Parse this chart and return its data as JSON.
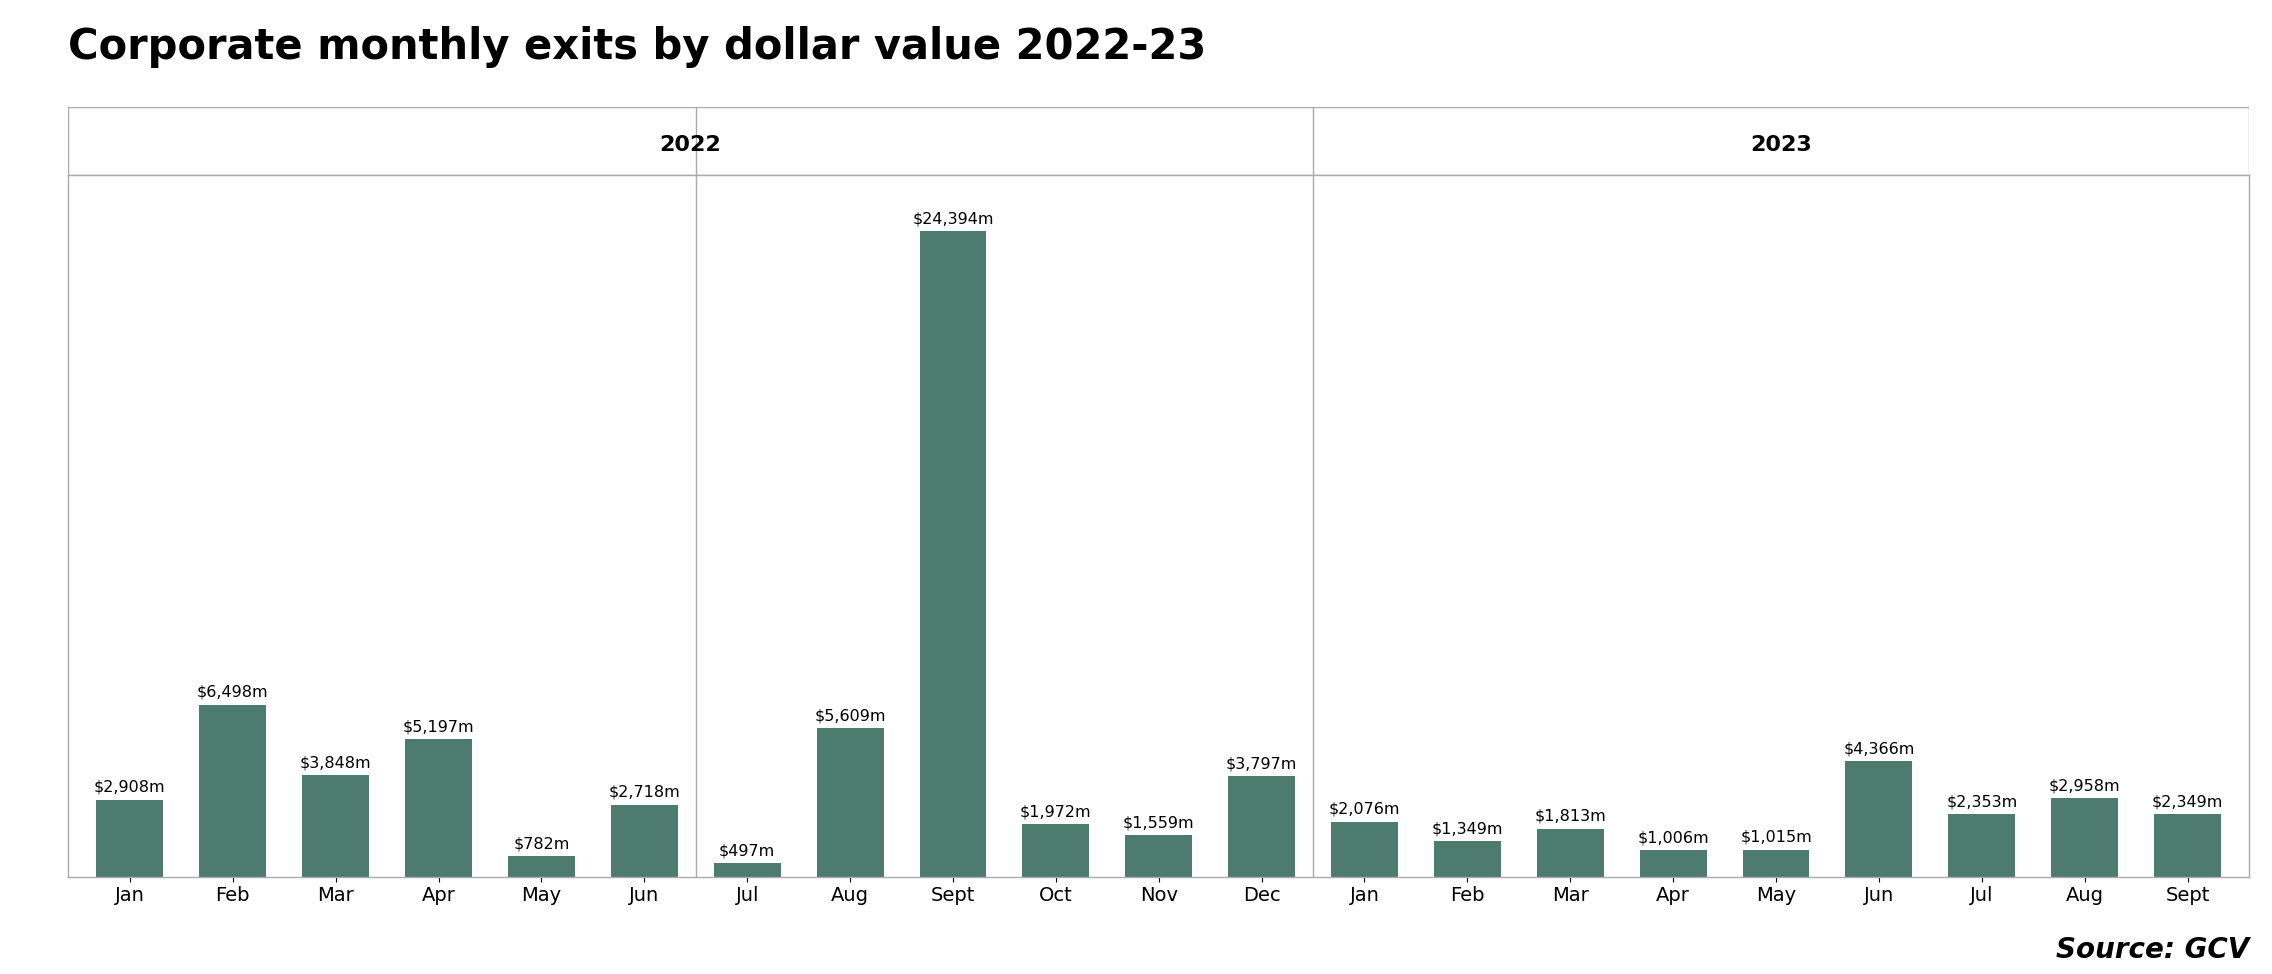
{
  "title": "Corporate monthly exits by dollar value 2022-23",
  "title_fontsize": 30,
  "bar_color": "#4d7c6f",
  "background_color": "#ffffff",
  "categories": [
    "Jan",
    "Feb",
    "Mar",
    "Apr",
    "May",
    "Jun",
    "Jul",
    "Aug",
    "Sept",
    "Oct",
    "Nov",
    "Dec",
    "Jan",
    "Feb",
    "Mar",
    "Apr",
    "May",
    "Jun",
    "Jul",
    "Aug",
    "Sept"
  ],
  "values": [
    2908,
    6498,
    3848,
    5197,
    782,
    2718,
    497,
    5609,
    24394,
    1972,
    1559,
    3797,
    2076,
    1349,
    1813,
    1006,
    1015,
    4366,
    2353,
    2958,
    2349
  ],
  "labels": [
    "$2,908m",
    "$6,498m",
    "$3,848m",
    "$5,197m",
    "$782m",
    "$2,718m",
    "$497m",
    "$5,609m",
    "$24,394m",
    "$1,972m",
    "$1,559m",
    "$3,797m",
    "$2,076m",
    "$1,349m",
    "$1,813m",
    "$1,006m",
    "$1,015m",
    "$4,366m",
    "$2,353m",
    "$2,958m",
    "$2,349m"
  ],
  "year_labels": [
    "2022",
    "2023"
  ],
  "year_label_fontsize": 16,
  "tick_fontsize": 14,
  "label_fontsize": 11.5,
  "source_text": "Source: GCV",
  "source_fontsize": 20,
  "ylim": [
    0,
    26500
  ],
  "border_color": "#aaaaaa",
  "separator_index": 11.5,
  "mid_separator_index": 5.5,
  "figsize": [
    22.72,
    9.74
  ],
  "dpi": 100
}
